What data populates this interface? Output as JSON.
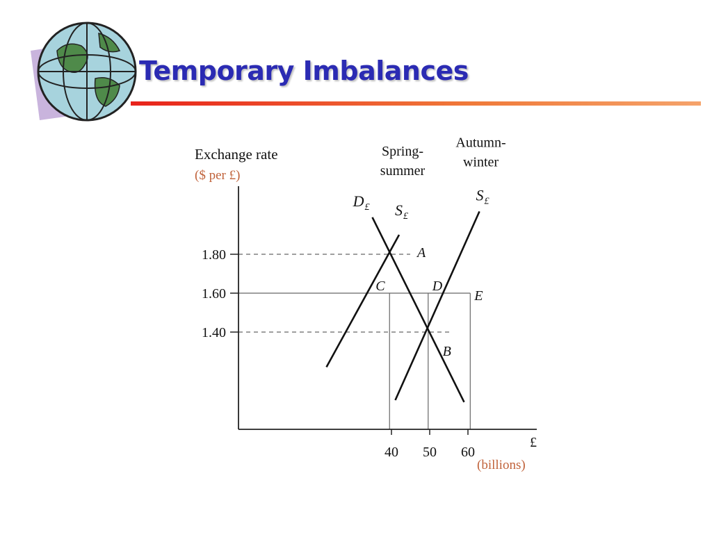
{
  "slide": {
    "title": "Temporary Imbalances",
    "accent_color": "#2b2bb3",
    "rule_colors": [
      "#e8231b",
      "#f5a36b"
    ],
    "logo_icon": "globe-icon"
  },
  "chart_data": {
    "type": "line",
    "ylabel": "Exchange rate",
    "ylabel_unit": "($ per £)",
    "xlabel": "£",
    "xlabel_unit": "(billions)",
    "xlim": [
      0,
      78
    ],
    "ylim": [
      0.9,
      2.15
    ],
    "yticks": [
      {
        "value": 1.8,
        "label": "1.80"
      },
      {
        "value": 1.6,
        "label": "1.60"
      },
      {
        "value": 1.4,
        "label": "1.40"
      }
    ],
    "xticks": [
      {
        "value": 40,
        "label": "40"
      },
      {
        "value": 50,
        "label": "50"
      },
      {
        "value": 60,
        "label": "60"
      }
    ],
    "series": [
      {
        "name": "D£",
        "label_main": "D",
        "label_sub": "£",
        "header": "",
        "points": [
          [
            35,
            1.99
          ],
          [
            59,
            1.04
          ]
        ]
      },
      {
        "name": "Spring-summer S£",
        "label_main": "S",
        "label_sub": "£",
        "header": "Spring-summer",
        "points": [
          [
            23,
            1.22
          ],
          [
            42,
            1.9
          ]
        ]
      },
      {
        "name": "Autumn-winter S£",
        "label_main": "S",
        "label_sub": "£",
        "header": "Autumn-winter",
        "points": [
          [
            41,
            1.05
          ],
          [
            63,
            2.02
          ]
        ]
      }
    ],
    "guides": [
      {
        "type": "dashed-h",
        "y": 1.8,
        "x_to": 44.9
      },
      {
        "type": "solid-h",
        "y": 1.6,
        "x_to": 60.6
      },
      {
        "type": "dashed-h",
        "y": 1.4,
        "x_to": 55.2
      },
      {
        "type": "solid-v",
        "x": 39.5,
        "y_to": 1.6
      },
      {
        "type": "solid-v",
        "x": 49.6,
        "y_to": 1.6
      },
      {
        "type": "solid-v",
        "x": 60.6,
        "y_to": 1.6
      }
    ],
    "points": [
      {
        "label": "A",
        "x": 44.9,
        "y": 1.8
      },
      {
        "label": "B",
        "x": 55.2,
        "y": 1.4
      },
      {
        "label": "C",
        "x": 39.5,
        "y": 1.6
      },
      {
        "label": "D",
        "x": 49.6,
        "y": 1.6
      },
      {
        "label": "E",
        "x": 60.6,
        "y": 1.6
      }
    ]
  }
}
